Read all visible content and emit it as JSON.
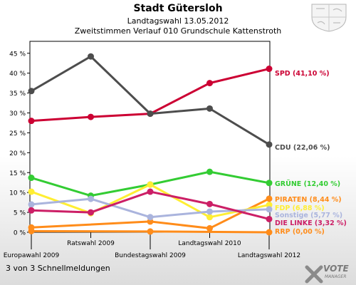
{
  "header": {
    "title": "Stadt Gütersloh",
    "subtitle": "Landtagswahl 13.05.2012",
    "subtitle2": "Zweitstimmen Verlauf 010 Grundschule Kattenstroth"
  },
  "footer": {
    "text": "3 von 3 Schnellmeldungen"
  },
  "logo": {
    "main": "VOTE",
    "sub": "MANAGER"
  },
  "chart_data": {
    "type": "line",
    "title": "Stadt Gütersloh",
    "categories": [
      "Europawahl 2009",
      "Ratswahl 2009",
      "Bundestagswahl 2009",
      "Landtagswahl 2010",
      "Landtagswahl 2012"
    ],
    "y_ticks": [
      "0 %",
      "5 %",
      "10 %",
      "15 %",
      "20 %",
      "25 %",
      "30 %",
      "35 %",
      "40 %",
      "45 %"
    ],
    "ylim": [
      0,
      48
    ],
    "grid": false,
    "series": [
      {
        "name": "SPD",
        "end_label": "SPD (41,10 %)",
        "color": "#cc0033",
        "values": [
          28.0,
          29.0,
          29.8,
          37.5,
          41.1
        ]
      },
      {
        "name": "CDU",
        "end_label": "CDU (22,06 %)",
        "color": "#4d4d4d",
        "values": [
          35.5,
          44.2,
          29.8,
          31.1,
          22.06
        ]
      },
      {
        "name": "GRÜNE",
        "end_label": "GRÜNE (12,40 %)",
        "color": "#33cc33",
        "values": [
          13.7,
          9.2,
          12.0,
          15.2,
          12.4
        ]
      },
      {
        "name": "PIRATEN",
        "end_label": "PIRATEN (8,44 %)",
        "color": "#ff8c1a",
        "values": [
          1.2,
          null,
          2.7,
          1.0,
          8.44
        ]
      },
      {
        "name": "FDP",
        "end_label": "FDP (6,88 %)",
        "color": "#ffee33",
        "values": [
          10.2,
          4.8,
          12.0,
          3.8,
          6.88
        ]
      },
      {
        "name": "Sonstige",
        "end_label": "Sonstige (5,77 %)",
        "color": "#aab4dd",
        "values": [
          7.0,
          8.4,
          3.8,
          5.2,
          5.77
        ]
      },
      {
        "name": "DIE LINKE",
        "end_label": "DIE LINKE (3,32 %)",
        "color": "#cc1f66",
        "values": [
          5.5,
          5.0,
          10.2,
          7.1,
          3.32
        ]
      },
      {
        "name": "RRP",
        "end_label": "RRP (0,00 %)",
        "color": "#ff8c1a",
        "values": [
          0.3,
          null,
          0.2,
          null,
          0.0
        ]
      }
    ]
  }
}
